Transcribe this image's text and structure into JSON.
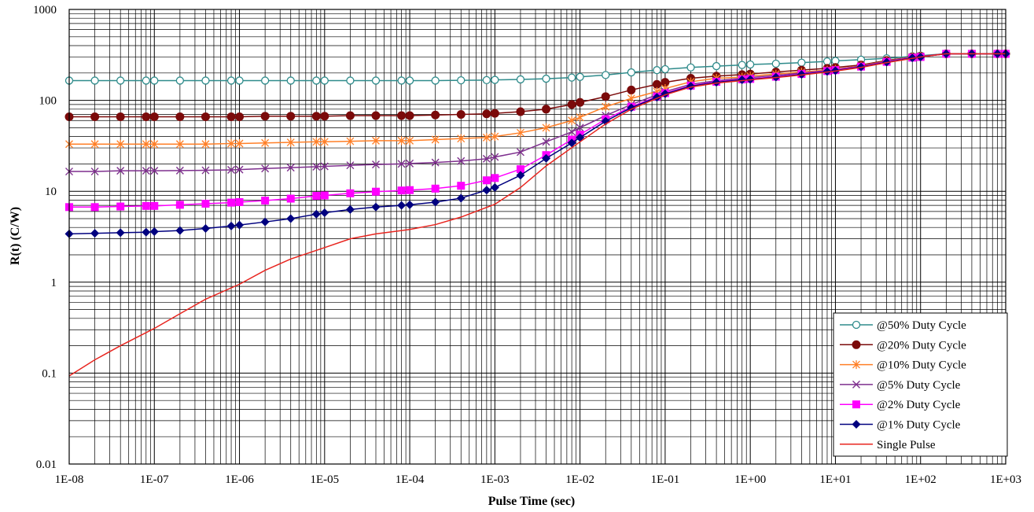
{
  "chart_data": {
    "type": "line",
    "title": "",
    "xlabel": "Pulse Time (sec)",
    "ylabel": "R(t) (C/W)",
    "x_scale": "log",
    "y_scale": "log",
    "xlim": [
      1e-08,
      1000
    ],
    "ylim": [
      0.01,
      1000
    ],
    "grid": true,
    "legend_position": "bottom-right",
    "x_tick_labels": [
      "1E-08",
      "1E-07",
      "1E-06",
      "1E-05",
      "1E-04",
      "1E-03",
      "1E-02",
      "1E-01",
      "1E+00",
      "1E+01",
      "1E+02",
      "1E+03"
    ],
    "y_tick_labels": [
      "0.01",
      "0.1",
      "1",
      "10",
      "100",
      "1000"
    ],
    "series": [
      {
        "name": "@50% Duty Cycle",
        "color": "#2E8B8B",
        "marker": "open-circle",
        "x": [
          1e-08,
          2e-08,
          4e-08,
          8e-08,
          1e-07,
          2e-07,
          4e-07,
          8e-07,
          1e-06,
          2e-06,
          4e-06,
          8e-06,
          1e-05,
          2e-05,
          4e-05,
          8e-05,
          0.0001,
          0.0002,
          0.0004,
          0.0008,
          0.001,
          0.002,
          0.004,
          0.008,
          0.01,
          0.02,
          0.04,
          0.08,
          0.1,
          0.2,
          0.4,
          0.8,
          1,
          2,
          4,
          8,
          10,
          20,
          40,
          80,
          100,
          200,
          400,
          800,
          1000
        ],
        "y": [
          165,
          165,
          165,
          165,
          165,
          165,
          165,
          165,
          165,
          165,
          165,
          165,
          165,
          165,
          165,
          165,
          165,
          165,
          166,
          167,
          168,
          170,
          173,
          178,
          181,
          190,
          203,
          215,
          220,
          230,
          238,
          245,
          248,
          253,
          260,
          268,
          272,
          280,
          290,
          305,
          310,
          325,
          325,
          325,
          325
        ]
      },
      {
        "name": "@20% Duty Cycle",
        "color": "#7B0A0A",
        "marker": "filled-circle",
        "x": [
          1e-08,
          2e-08,
          4e-08,
          8e-08,
          1e-07,
          2e-07,
          4e-07,
          8e-07,
          1e-06,
          2e-06,
          4e-06,
          8e-06,
          1e-05,
          2e-05,
          4e-05,
          8e-05,
          0.0001,
          0.0002,
          0.0004,
          0.0008,
          0.001,
          0.002,
          0.004,
          0.008,
          0.01,
          0.02,
          0.04,
          0.08,
          0.1,
          0.2,
          0.4,
          0.8,
          1,
          2,
          4,
          8,
          10,
          20,
          40,
          80,
          100,
          200,
          400,
          800,
          1000
        ],
        "y": [
          66,
          66,
          66,
          66,
          66,
          66,
          66,
          66,
          66,
          67,
          67,
          67,
          67,
          68,
          68,
          68,
          68,
          69,
          70,
          71,
          72,
          75,
          80,
          90,
          95,
          110,
          130,
          150,
          158,
          175,
          185,
          192,
          195,
          205,
          215,
          225,
          230,
          245,
          275,
          300,
          305,
          325,
          325,
          325,
          325
        ]
      },
      {
        "name": "@10% Duty Cycle",
        "color": "#FF7F27",
        "marker": "asterisk",
        "x": [
          1e-08,
          2e-08,
          4e-08,
          8e-08,
          1e-07,
          2e-07,
          4e-07,
          8e-07,
          1e-06,
          2e-06,
          4e-06,
          8e-06,
          1e-05,
          2e-05,
          4e-05,
          8e-05,
          0.0001,
          0.0002,
          0.0004,
          0.0008,
          0.001,
          0.002,
          0.004,
          0.008,
          0.01,
          0.02,
          0.04,
          0.08,
          0.1,
          0.2,
          0.4,
          0.8,
          1,
          2,
          4,
          8,
          10,
          20,
          40,
          80,
          100,
          200,
          400,
          800,
          1000
        ],
        "y": [
          33,
          33,
          33,
          33,
          33,
          33,
          33,
          33.5,
          33.5,
          34,
          34.5,
          35,
          35,
          35.5,
          36,
          36,
          36,
          37,
          38,
          39,
          40,
          44,
          50,
          60,
          65,
          85,
          105,
          125,
          135,
          160,
          175,
          180,
          185,
          195,
          205,
          215,
          220,
          240,
          270,
          300,
          305,
          325,
          325,
          325,
          325
        ]
      },
      {
        "name": "@5% Duty Cycle",
        "color": "#7E2F8E",
        "marker": "x",
        "x": [
          1e-08,
          2e-08,
          4e-08,
          8e-08,
          1e-07,
          2e-07,
          4e-07,
          8e-07,
          1e-06,
          2e-06,
          4e-06,
          8e-06,
          1e-05,
          2e-05,
          4e-05,
          8e-05,
          0.0001,
          0.0002,
          0.0004,
          0.0008,
          0.001,
          0.002,
          0.004,
          0.008,
          0.01,
          0.02,
          0.04,
          0.08,
          0.1,
          0.2,
          0.4,
          0.8,
          1,
          2,
          4,
          8,
          10,
          20,
          40,
          80,
          100,
          200,
          400,
          800,
          1000
        ],
        "y": [
          16.5,
          16.5,
          16.8,
          16.8,
          16.8,
          16.9,
          17,
          17.2,
          17.3,
          17.8,
          18.2,
          18.6,
          18.8,
          19.3,
          19.7,
          20,
          20.2,
          20.7,
          21.5,
          22.8,
          23.8,
          27,
          35,
          45,
          50,
          68,
          90,
          115,
          125,
          150,
          165,
          175,
          178,
          188,
          200,
          212,
          218,
          238,
          268,
          298,
          305,
          325,
          325,
          325,
          325
        ]
      },
      {
        "name": "@2% Duty Cycle",
        "color": "#FF00FF",
        "marker": "filled-square",
        "x": [
          1e-08,
          2e-08,
          4e-08,
          8e-08,
          1e-07,
          2e-07,
          4e-07,
          8e-07,
          1e-06,
          2e-06,
          4e-06,
          8e-06,
          1e-05,
          2e-05,
          4e-05,
          8e-05,
          0.0001,
          0.0002,
          0.0004,
          0.0008,
          0.001,
          0.002,
          0.004,
          0.008,
          0.01,
          0.02,
          0.04,
          0.08,
          0.1,
          0.2,
          0.4,
          0.8,
          1,
          2,
          4,
          8,
          10,
          20,
          40,
          80,
          100,
          200,
          400,
          800,
          1000
        ],
        "y": [
          6.7,
          6.7,
          6.8,
          6.9,
          6.9,
          7.1,
          7.3,
          7.5,
          7.6,
          7.9,
          8.3,
          8.9,
          9,
          9.5,
          9.9,
          10.2,
          10.3,
          10.7,
          11.5,
          13.2,
          14,
          17.5,
          25,
          37,
          42,
          62,
          85,
          110,
          120,
          145,
          160,
          170,
          172,
          182,
          195,
          210,
          215,
          235,
          265,
          295,
          300,
          325,
          325,
          325,
          325
        ]
      },
      {
        "name": "@1% Duty Cycle",
        "color": "#00007F",
        "marker": "filled-diamond",
        "x": [
          1e-08,
          2e-08,
          4e-08,
          8e-08,
          1e-07,
          2e-07,
          4e-07,
          8e-07,
          1e-06,
          2e-06,
          4e-06,
          8e-06,
          1e-05,
          2e-05,
          4e-05,
          8e-05,
          0.0001,
          0.0002,
          0.0004,
          0.0008,
          0.001,
          0.002,
          0.004,
          0.008,
          0.01,
          0.02,
          0.04,
          0.08,
          0.1,
          0.2,
          0.4,
          0.8,
          1,
          2,
          4,
          8,
          10,
          20,
          40,
          80,
          100,
          200,
          400,
          800,
          1000
        ],
        "y": [
          3.4,
          3.45,
          3.5,
          3.55,
          3.6,
          3.7,
          3.9,
          4.15,
          4.25,
          4.6,
          5,
          5.6,
          5.8,
          6.3,
          6.7,
          7,
          7.1,
          7.6,
          8.4,
          10.3,
          11,
          15,
          23,
          34,
          39,
          59,
          83,
          108,
          118,
          143,
          158,
          168,
          170,
          180,
          193,
          208,
          212,
          233,
          263,
          293,
          300,
          325,
          325,
          325,
          325
        ]
      },
      {
        "name": "Single Pulse",
        "color": "#E8251F",
        "marker": "none",
        "x": [
          1e-08,
          2e-08,
          4e-08,
          1e-07,
          2e-07,
          4e-07,
          1e-06,
          2e-06,
          4e-06,
          1e-05,
          2e-05,
          4e-05,
          0.0001,
          0.0002,
          0.0004,
          0.001,
          0.002,
          0.004,
          0.01,
          0.02,
          0.04,
          0.1,
          0.2,
          0.4,
          1,
          2,
          4,
          10,
          20,
          40,
          100,
          200,
          400,
          1000
        ],
        "y": [
          0.093,
          0.14,
          0.2,
          0.31,
          0.45,
          0.65,
          0.95,
          1.35,
          1.8,
          2.4,
          3,
          3.4,
          3.8,
          4.3,
          5.2,
          7.2,
          11,
          19,
          35,
          55,
          80,
          115,
          140,
          155,
          168,
          178,
          190,
          210,
          230,
          260,
          300,
          325,
          325,
          325
        ]
      }
    ]
  }
}
